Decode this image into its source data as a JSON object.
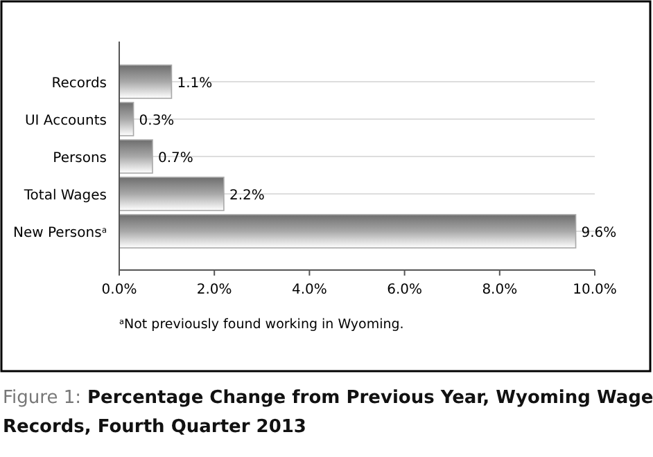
{
  "chart_data": {
    "type": "bar",
    "orientation": "horizontal",
    "title": "Figure 1: Percentage Change from Previous Year, Wyoming Wage Records, Fourth Quarter 2013",
    "categories": [
      "Records",
      "UI Accounts",
      "Persons",
      "Total Wages",
      "New Persons$^{a}$"
    ],
    "values": [
      1.1,
      0.3,
      0.7,
      2.2,
      9.6
    ],
    "value_labels": [
      "1.1%",
      "0.3%",
      "0.7%",
      "2.2%",
      "9.6%"
    ],
    "color": "#a8a8a8",
    "xlim": [
      0,
      10
    ],
    "xticks": [
      {
        "value": 0,
        "label": "0.0%"
      },
      {
        "value": 2,
        "label": "2.0%"
      },
      {
        "value": 4,
        "label": "4.0%"
      },
      {
        "value": 6,
        "label": "6.0%"
      },
      {
        "value": 8,
        "label": "8.0%"
      },
      {
        "value": 10,
        "label": "10.0%"
      }
    ],
    "grid": "y",
    "annotations": [
      "$^{a}$Not previously found working in Wyoming."
    ]
  }
}
